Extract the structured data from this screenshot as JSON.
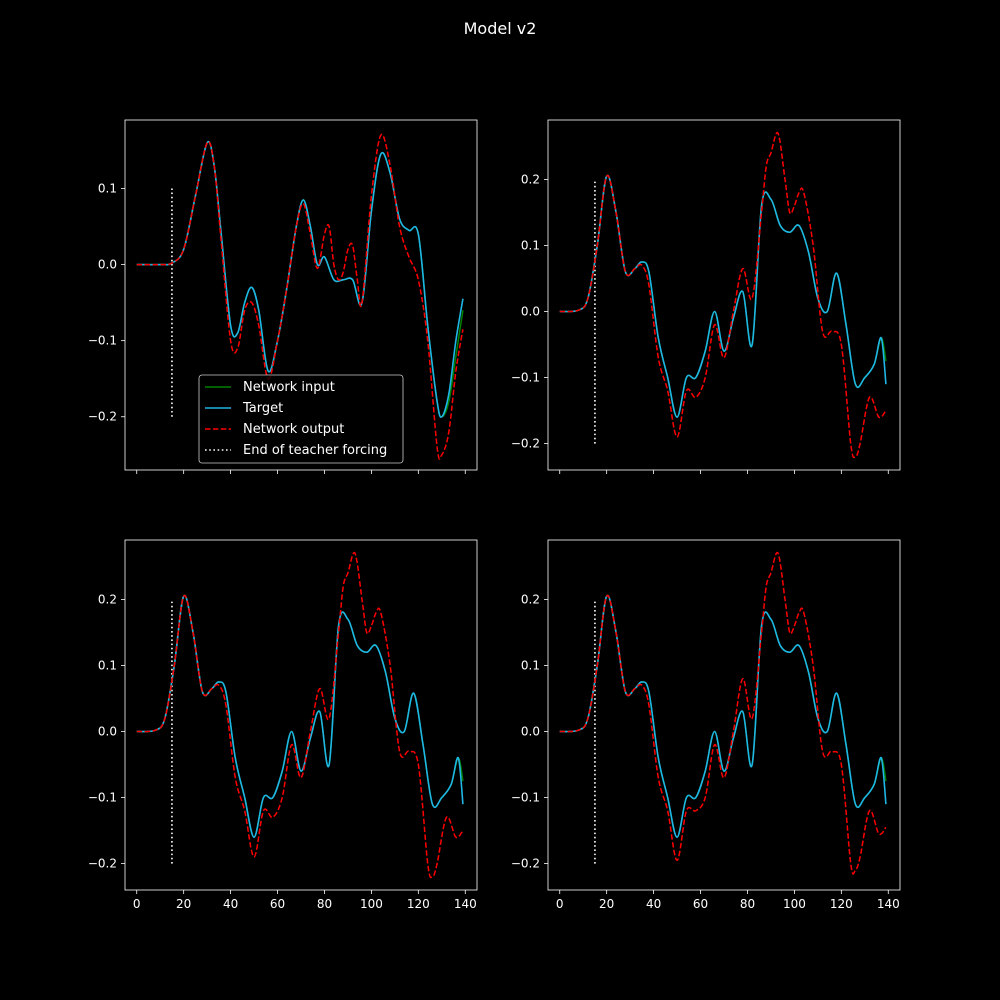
{
  "figure": {
    "title": "Model v2",
    "background": "#000000",
    "foreground": "#ffffff"
  },
  "legend": {
    "placement": "lower-center of top-left panel",
    "entries": [
      {
        "label": "Network input",
        "color": "#008000",
        "style": "solid"
      },
      {
        "label": "Target",
        "color": "#1fb6e6",
        "style": "solid"
      },
      {
        "label": "Network output",
        "color": "#ff0000",
        "style": "dashed"
      },
      {
        "label": "End of teacher forcing",
        "color": "#ffffff",
        "style": "dotted"
      }
    ]
  },
  "chart_data": [
    {
      "type": "line",
      "panel": "top-left",
      "xlim": [
        -5,
        145
      ],
      "ylim": [
        -0.27,
        0.19
      ],
      "xticks": [
        0,
        20,
        40,
        60,
        80,
        100,
        120,
        140
      ],
      "yticks": [
        -0.2,
        -0.1,
        0.0,
        0.1
      ],
      "show_xtick_labels": false,
      "teacher_forcing_end": {
        "x": 15,
        "y_range": [
          -0.2,
          0.1
        ]
      },
      "series": [
        {
          "name": "Network input",
          "x": [
            0,
            10,
            15,
            20,
            25,
            30,
            33,
            36,
            40,
            43,
            46,
            49,
            52,
            56,
            60,
            64,
            68,
            71,
            74,
            77,
            80,
            84,
            88,
            92,
            96,
            100,
            104,
            108,
            112,
            116,
            120,
            124,
            128,
            130,
            133,
            136,
            139
          ],
          "y": [
            0,
            0,
            0.002,
            0.02,
            0.09,
            0.16,
            0.13,
            0.04,
            -0.08,
            -0.09,
            -0.05,
            -0.03,
            -0.06,
            -0.14,
            -0.1,
            -0.03,
            0.05,
            0.085,
            0.05,
            0.0,
            0.01,
            -0.02,
            -0.02,
            -0.02,
            -0.05,
            0.07,
            0.145,
            0.12,
            0.06,
            0.045,
            0.04,
            -0.08,
            -0.18,
            -0.2,
            -0.18,
            -0.12,
            -0.06
          ]
        },
        {
          "name": "Target",
          "x": [
            0,
            10,
            15,
            20,
            25,
            30,
            33,
            36,
            40,
            43,
            46,
            49,
            52,
            56,
            60,
            64,
            68,
            71,
            74,
            77,
            80,
            84,
            88,
            92,
            96,
            100,
            104,
            108,
            112,
            116,
            120,
            124,
            128,
            130,
            133,
            136,
            139
          ],
          "y": [
            0,
            0,
            0.002,
            0.02,
            0.09,
            0.16,
            0.13,
            0.04,
            -0.08,
            -0.09,
            -0.05,
            -0.03,
            -0.06,
            -0.14,
            -0.1,
            -0.03,
            0.05,
            0.085,
            0.05,
            0.0,
            0.01,
            -0.02,
            -0.02,
            -0.02,
            -0.05,
            0.07,
            0.145,
            0.12,
            0.06,
            0.045,
            0.04,
            -0.08,
            -0.18,
            -0.2,
            -0.17,
            -0.1,
            -0.045
          ]
        },
        {
          "name": "Network output",
          "x": [
            0,
            10,
            15,
            20,
            25,
            30,
            33,
            36,
            40,
            43,
            46,
            49,
            52,
            56,
            60,
            64,
            68,
            71,
            74,
            77,
            80,
            82,
            84,
            86,
            88,
            90,
            92,
            94,
            96,
            100,
            104,
            108,
            112,
            116,
            120,
            124,
            128,
            130,
            133,
            136,
            139
          ],
          "y": [
            0,
            0,
            0.002,
            0.02,
            0.09,
            0.16,
            0.13,
            0.03,
            -0.1,
            -0.11,
            -0.06,
            -0.05,
            -0.08,
            -0.15,
            -0.1,
            -0.03,
            0.05,
            0.08,
            0.04,
            -0.005,
            0.04,
            0.05,
            0.0,
            -0.02,
            -0.01,
            0.02,
            0.025,
            -0.02,
            -0.05,
            0.09,
            0.17,
            0.13,
            0.05,
            0.01,
            -0.02,
            -0.1,
            -0.24,
            -0.25,
            -0.22,
            -0.14,
            -0.085
          ]
        }
      ]
    },
    {
      "type": "line",
      "panel": "top-right",
      "xlim": [
        -5,
        145
      ],
      "ylim": [
        -0.24,
        0.29
      ],
      "xticks": [
        0,
        20,
        40,
        60,
        80,
        100,
        120,
        140
      ],
      "yticks": [
        -0.2,
        -0.1,
        0.0,
        0.1,
        0.2
      ],
      "show_xtick_labels": false,
      "teacher_forcing_end": {
        "x": 15,
        "y_range": [
          -0.2,
          0.2
        ]
      },
      "series": [
        {
          "name": "Network input",
          "x": [
            0,
            8,
            12,
            16,
            20,
            24,
            28,
            32,
            35,
            38,
            42,
            46,
            50,
            54,
            58,
            62,
            66,
            70,
            74,
            78,
            82,
            86,
            90,
            94,
            98,
            102,
            106,
            110,
            114,
            118,
            122,
            126,
            130,
            134,
            137,
            139
          ],
          "y": [
            0,
            0.002,
            0.02,
            0.1,
            0.205,
            0.15,
            0.06,
            0.065,
            0.075,
            0.06,
            -0.04,
            -0.1,
            -0.16,
            -0.1,
            -0.1,
            -0.06,
            0.0,
            -0.06,
            -0.01,
            0.03,
            -0.05,
            0.16,
            0.17,
            0.13,
            0.12,
            0.13,
            0.09,
            0.02,
            0.0,
            0.058,
            -0.02,
            -0.11,
            -0.1,
            -0.08,
            -0.04,
            -0.075
          ]
        },
        {
          "name": "Target",
          "x": [
            0,
            8,
            12,
            16,
            20,
            24,
            28,
            32,
            35,
            38,
            42,
            46,
            50,
            54,
            58,
            62,
            66,
            70,
            74,
            78,
            82,
            86,
            90,
            94,
            98,
            102,
            106,
            110,
            114,
            118,
            122,
            126,
            130,
            134,
            137,
            139
          ],
          "y": [
            0,
            0.002,
            0.02,
            0.1,
            0.205,
            0.15,
            0.06,
            0.065,
            0.075,
            0.06,
            -0.04,
            -0.1,
            -0.16,
            -0.1,
            -0.1,
            -0.06,
            0.0,
            -0.06,
            -0.01,
            0.03,
            -0.05,
            0.16,
            0.17,
            0.13,
            0.12,
            0.13,
            0.09,
            0.02,
            0.0,
            0.058,
            -0.02,
            -0.11,
            -0.1,
            -0.08,
            -0.04,
            -0.11
          ]
        },
        {
          "name": "Network output",
          "x": [
            0,
            8,
            12,
            16,
            20,
            24,
            28,
            32,
            35,
            38,
            42,
            46,
            50,
            54,
            58,
            62,
            66,
            70,
            74,
            78,
            82,
            86,
            88,
            90,
            93,
            96,
            98,
            100,
            102,
            104,
            108,
            112,
            116,
            120,
            124,
            126,
            128,
            132,
            136,
            139
          ],
          "y": [
            0,
            0.002,
            0.02,
            0.1,
            0.205,
            0.15,
            0.06,
            0.065,
            0.07,
            0.04,
            -0.07,
            -0.12,
            -0.19,
            -0.12,
            -0.13,
            -0.1,
            -0.02,
            -0.07,
            0.0,
            0.065,
            0.02,
            0.15,
            0.22,
            0.24,
            0.27,
            0.2,
            0.15,
            0.16,
            0.18,
            0.18,
            0.1,
            -0.03,
            -0.03,
            -0.05,
            -0.2,
            -0.22,
            -0.2,
            -0.13,
            -0.16,
            -0.15
          ]
        }
      ]
    },
    {
      "type": "line",
      "panel": "bottom-left",
      "xlim": [
        -5,
        145
      ],
      "ylim": [
        -0.24,
        0.29
      ],
      "xticks": [
        0,
        20,
        40,
        60,
        80,
        100,
        120,
        140
      ],
      "yticks": [
        -0.2,
        -0.1,
        0.0,
        0.1,
        0.2
      ],
      "show_xtick_labels": true,
      "teacher_forcing_end": {
        "x": 15,
        "y_range": [
          -0.2,
          0.2
        ]
      },
      "series": [
        {
          "name": "Network input",
          "x": [
            0,
            8,
            12,
            16,
            20,
            24,
            28,
            32,
            35,
            38,
            42,
            46,
            50,
            54,
            58,
            62,
            66,
            70,
            74,
            78,
            82,
            86,
            90,
            94,
            98,
            102,
            106,
            110,
            114,
            118,
            122,
            126,
            130,
            134,
            137,
            139
          ],
          "y": [
            0,
            0.002,
            0.02,
            0.1,
            0.205,
            0.15,
            0.06,
            0.065,
            0.075,
            0.06,
            -0.04,
            -0.1,
            -0.16,
            -0.1,
            -0.1,
            -0.06,
            0.0,
            -0.06,
            -0.01,
            0.03,
            -0.05,
            0.16,
            0.17,
            0.13,
            0.12,
            0.13,
            0.09,
            0.02,
            0.0,
            0.058,
            -0.02,
            -0.11,
            -0.1,
            -0.08,
            -0.04,
            -0.075
          ]
        },
        {
          "name": "Target",
          "x": [
            0,
            8,
            12,
            16,
            20,
            24,
            28,
            32,
            35,
            38,
            42,
            46,
            50,
            54,
            58,
            62,
            66,
            70,
            74,
            78,
            82,
            86,
            90,
            94,
            98,
            102,
            106,
            110,
            114,
            118,
            122,
            126,
            130,
            134,
            137,
            139
          ],
          "y": [
            0,
            0.002,
            0.02,
            0.1,
            0.205,
            0.15,
            0.06,
            0.065,
            0.075,
            0.06,
            -0.04,
            -0.1,
            -0.16,
            -0.1,
            -0.1,
            -0.06,
            0.0,
            -0.06,
            -0.01,
            0.03,
            -0.05,
            0.16,
            0.17,
            0.13,
            0.12,
            0.13,
            0.09,
            0.02,
            0.0,
            0.058,
            -0.02,
            -0.11,
            -0.1,
            -0.08,
            -0.04,
            -0.11
          ]
        },
        {
          "name": "Network output",
          "x": [
            0,
            8,
            12,
            16,
            20,
            24,
            28,
            32,
            35,
            38,
            42,
            46,
            50,
            54,
            58,
            62,
            66,
            70,
            74,
            78,
            82,
            86,
            88,
            90,
            93,
            96,
            98,
            100,
            102,
            104,
            108,
            112,
            116,
            120,
            124,
            126,
            128,
            132,
            136,
            139
          ],
          "y": [
            0,
            0.002,
            0.02,
            0.1,
            0.205,
            0.15,
            0.06,
            0.065,
            0.07,
            0.04,
            -0.07,
            -0.12,
            -0.19,
            -0.12,
            -0.13,
            -0.1,
            -0.02,
            -0.07,
            0.0,
            0.065,
            0.02,
            0.15,
            0.22,
            0.24,
            0.27,
            0.2,
            0.15,
            0.16,
            0.18,
            0.18,
            0.1,
            -0.03,
            -0.03,
            -0.05,
            -0.2,
            -0.22,
            -0.2,
            -0.13,
            -0.16,
            -0.15
          ]
        }
      ]
    },
    {
      "type": "line",
      "panel": "bottom-right",
      "xlim": [
        -5,
        145
      ],
      "ylim": [
        -0.24,
        0.29
      ],
      "xticks": [
        0,
        20,
        40,
        60,
        80,
        100,
        120,
        140
      ],
      "yticks": [
        -0.2,
        -0.1,
        0.0,
        0.1,
        0.2
      ],
      "show_xtick_labels": true,
      "teacher_forcing_end": {
        "x": 15,
        "y_range": [
          -0.2,
          0.2
        ]
      },
      "series": [
        {
          "name": "Network input",
          "x": [
            0,
            8,
            12,
            16,
            20,
            24,
            28,
            32,
            35,
            38,
            42,
            46,
            50,
            54,
            58,
            62,
            66,
            70,
            74,
            78,
            82,
            86,
            90,
            94,
            98,
            102,
            106,
            110,
            114,
            118,
            122,
            126,
            130,
            134,
            137,
            139
          ],
          "y": [
            0,
            0.002,
            0.02,
            0.1,
            0.205,
            0.15,
            0.06,
            0.065,
            0.075,
            0.06,
            -0.04,
            -0.1,
            -0.16,
            -0.1,
            -0.1,
            -0.06,
            0.0,
            -0.06,
            -0.01,
            0.03,
            -0.05,
            0.16,
            0.17,
            0.13,
            0.12,
            0.13,
            0.09,
            0.02,
            0.0,
            0.058,
            -0.02,
            -0.11,
            -0.1,
            -0.08,
            -0.04,
            -0.075
          ]
        },
        {
          "name": "Target",
          "x": [
            0,
            8,
            12,
            16,
            20,
            24,
            28,
            32,
            35,
            38,
            42,
            46,
            50,
            54,
            58,
            62,
            66,
            70,
            74,
            78,
            82,
            86,
            90,
            94,
            98,
            102,
            106,
            110,
            114,
            118,
            122,
            126,
            130,
            134,
            137,
            139
          ],
          "y": [
            0,
            0.002,
            0.02,
            0.1,
            0.205,
            0.15,
            0.06,
            0.065,
            0.075,
            0.06,
            -0.04,
            -0.1,
            -0.16,
            -0.1,
            -0.1,
            -0.06,
            0.0,
            -0.06,
            -0.01,
            0.03,
            -0.05,
            0.16,
            0.17,
            0.13,
            0.12,
            0.13,
            0.09,
            0.02,
            0.0,
            0.058,
            -0.02,
            -0.11,
            -0.1,
            -0.08,
            -0.04,
            -0.11
          ]
        },
        {
          "name": "Network output",
          "x": [
            0,
            8,
            12,
            16,
            20,
            24,
            28,
            32,
            35,
            38,
            42,
            46,
            50,
            54,
            58,
            62,
            66,
            70,
            74,
            78,
            82,
            86,
            88,
            90,
            93,
            96,
            98,
            100,
            102,
            104,
            108,
            112,
            116,
            120,
            124,
            126,
            128,
            132,
            136,
            139
          ],
          "y": [
            0,
            0.002,
            0.02,
            0.1,
            0.205,
            0.15,
            0.06,
            0.065,
            0.07,
            0.04,
            -0.07,
            -0.12,
            -0.195,
            -0.12,
            -0.12,
            -0.1,
            -0.02,
            -0.07,
            0.0,
            0.08,
            0.02,
            0.15,
            0.22,
            0.24,
            0.27,
            0.2,
            0.15,
            0.16,
            0.18,
            0.18,
            0.1,
            -0.03,
            -0.03,
            -0.05,
            -0.2,
            -0.21,
            -0.19,
            -0.12,
            -0.155,
            -0.145
          ]
        }
      ]
    }
  ]
}
